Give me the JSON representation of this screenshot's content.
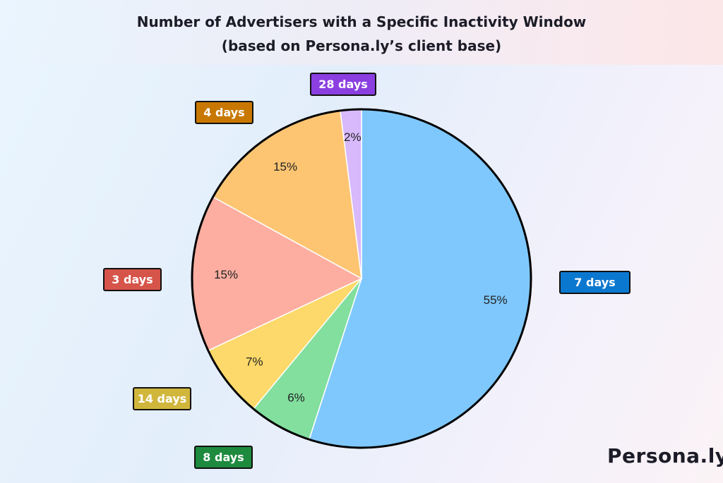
{
  "chart_data": {
    "type": "pie",
    "title": "Number of Advertisers with a Specific Inactivity Window",
    "subtitle": "(based on Persona.ly’s client base)",
    "slices": [
      {
        "label": "7 days",
        "value": 55,
        "pct_label": "55%",
        "color": "#7fc8fd",
        "tag_color": "#0b78d0"
      },
      {
        "label": "8 days",
        "value": 6,
        "pct_label": "6%",
        "color": "#82df9e",
        "tag_color": "#1e8a3e"
      },
      {
        "label": "14 days",
        "value": 7,
        "pct_label": "7%",
        "color": "#fcd96a",
        "tag_color": "#d1b63c"
      },
      {
        "label": "3 days",
        "value": 15,
        "pct_label": "15%",
        "color": "#fdaea1",
        "tag_color": "#d65449"
      },
      {
        "label": "4 days",
        "value": 15,
        "pct_label": "15%",
        "color": "#fdc572",
        "tag_color": "#c87800"
      },
      {
        "label": "28 days",
        "value": 2,
        "pct_label": "2%",
        "color": "#d8b9fb",
        "tag_color": "#8b3fe0"
      }
    ]
  },
  "brand": {
    "logo_text": "Persona.ly"
  }
}
